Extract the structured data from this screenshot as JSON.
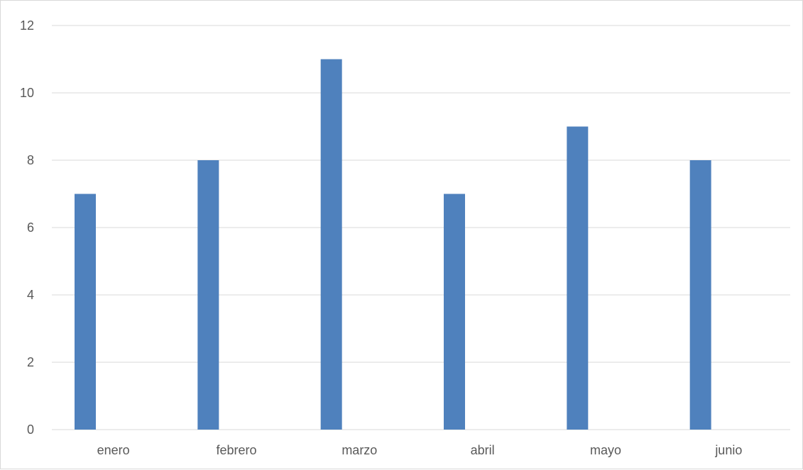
{
  "chart_data": {
    "type": "bar",
    "categories": [
      "enero",
      "febrero",
      "marzo",
      "abril",
      "mayo",
      "junio"
    ],
    "values": [
      7,
      8,
      11,
      7,
      9,
      8
    ],
    "title": "",
    "xlabel": "",
    "ylabel": "",
    "ylim": [
      0,
      12
    ],
    "yticks": [
      "0",
      "2",
      "4",
      "6",
      "8",
      "10",
      "12"
    ],
    "grid": true,
    "legend": "none",
    "bar_color": "#4f81bd",
    "grid_color": "#d9d9d9",
    "text_color": "#595959"
  }
}
